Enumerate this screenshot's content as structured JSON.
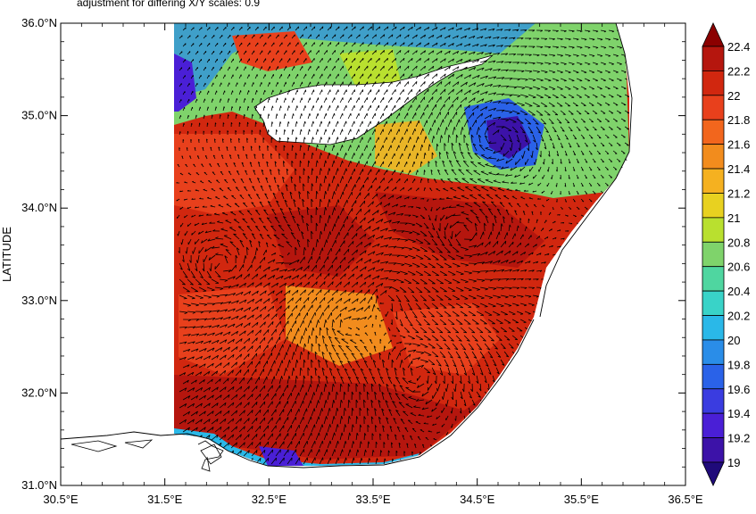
{
  "header": {
    "note": "adjustment for differing X/Y scales: 0.9"
  },
  "map": {
    "y_axis_label": "LATITUDE",
    "x_ticks": [
      "30.5°E",
      "31.5°E",
      "32.5°E",
      "33.5°E",
      "34.5°E",
      "35.5°E",
      "36.5°E"
    ],
    "y_ticks": [
      "31.0°N",
      "32.0°N",
      "33.0°N",
      "34.0°N",
      "35.0°N",
      "36.0°N"
    ],
    "lon_range": [
      30.5,
      36.5
    ],
    "lat_range": [
      31.0,
      36.0
    ],
    "field": "sea surface temperature with surface current vectors",
    "colors": {
      "warm_core": "#b5160e",
      "warm": "#e8401c",
      "mid": "#f28c1d",
      "cool_green": "#7fd36b",
      "cyan": "#39d3c8",
      "cool_blue": "#2a6ee8",
      "violet": "#4a1fd6",
      "land": "#ffffff",
      "arrows": "#000000"
    }
  },
  "colorbar": {
    "labels": [
      "22.4",
      "22.2",
      "22",
      "21.8",
      "21.6",
      "21.4",
      "21.2",
      "21",
      "20.8",
      "20.6",
      "20.4",
      "20.2",
      "20",
      "19.8",
      "19.6",
      "19.4",
      "19.2",
      "19"
    ],
    "colors": [
      "#8b0000",
      "#b5160e",
      "#d1270f",
      "#e8401c",
      "#f2661d",
      "#f28c1d",
      "#f5b120",
      "#e8d120",
      "#b9e02f",
      "#7fd36b",
      "#4fd6a0",
      "#39d3c8",
      "#2ab8e8",
      "#2a8de8",
      "#2a62e8",
      "#3a3ce0",
      "#4a1fd6",
      "#3c12a8",
      "#1f0a7a"
    ]
  }
}
